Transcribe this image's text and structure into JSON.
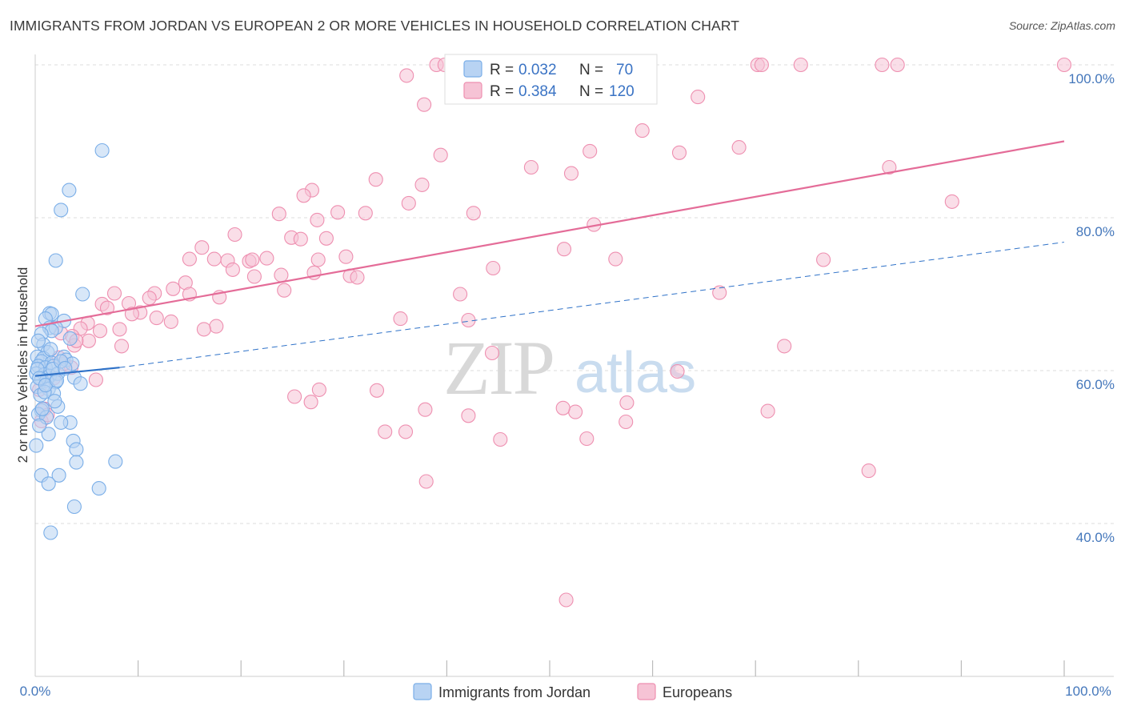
{
  "title": "IMMIGRANTS FROM JORDAN VS EUROPEAN 2 OR MORE VEHICLES IN HOUSEHOLD CORRELATION CHART",
  "source": "Source: ZipAtlas.com",
  "colors": {
    "blue": "#7aaee8",
    "blue_fill": "#b8d3f3",
    "blue_line": "#2f72c8",
    "pink": "#ee8fb0",
    "pink_fill": "#f6c3d5",
    "pink_line": "#e46c98",
    "grid": "#dddddd",
    "tick_text": "#4477bb"
  },
  "watermark": {
    "zip": "ZIP",
    "atlas": "atlas"
  },
  "stats": {
    "r_label": "R =",
    "n_label": "N =",
    "jordan": {
      "r": "0.032",
      "n": "70"
    },
    "europeans": {
      "r": "0.384",
      "n": "120"
    }
  },
  "chart_data": {
    "type": "scatter",
    "title": "IMMIGRANTS FROM JORDAN VS EUROPEAN 2 OR MORE VEHICLES IN HOUSEHOLD CORRELATION CHART",
    "xlabel": "",
    "ylabel": "2 or more Vehicles in Household",
    "xlim": [
      0,
      100
    ],
    "ylim": [
      20,
      102
    ],
    "x_tick_labels": [
      "0.0%",
      "100.0%"
    ],
    "y_ticks": [
      {
        "value": 40,
        "label": "40.0%"
      },
      {
        "value": 60,
        "label": "60.0%"
      },
      {
        "value": 80,
        "label": "80.0%"
      },
      {
        "value": 100,
        "label": "100.0%"
      }
    ],
    "legend": [
      "Immigrants from Jordan",
      "Europeans"
    ],
    "legend_position": "bottom-center",
    "series": [
      {
        "name": "Immigrants from Jordan",
        "trend": {
          "x0": 0,
          "y0": 59.3,
          "x1": 8.2,
          "y1": 60.4,
          "dash_x1": 100,
          "dash_y1": 76.8
        },
        "points": [
          [
            6.5,
            88.8
          ],
          [
            3.3,
            83.6
          ],
          [
            2.5,
            81.0
          ],
          [
            2.0,
            74.4
          ],
          [
            4.6,
            70.0
          ],
          [
            1.4,
            67.5
          ],
          [
            1.6,
            67.4
          ],
          [
            1.0,
            66.8
          ],
          [
            2.8,
            66.5
          ],
          [
            1.4,
            65.6
          ],
          [
            2.0,
            65.6
          ],
          [
            1.6,
            65.2
          ],
          [
            0.6,
            64.8
          ],
          [
            0.8,
            63.4
          ],
          [
            3.4,
            64.2
          ],
          [
            1.2,
            62.4
          ],
          [
            0.2,
            61.8
          ],
          [
            0.8,
            61.6
          ],
          [
            2.8,
            61.8
          ],
          [
            3.0,
            61.4
          ],
          [
            0.6,
            61.2
          ],
          [
            1.6,
            61.0
          ],
          [
            0.3,
            60.6
          ],
          [
            1.0,
            60.4
          ],
          [
            1.8,
            60.6
          ],
          [
            3.6,
            60.9
          ],
          [
            0.1,
            59.6
          ],
          [
            0.9,
            59.5
          ],
          [
            1.4,
            59.3
          ],
          [
            2.2,
            59.6
          ],
          [
            3.8,
            59.1
          ],
          [
            0.6,
            58.9
          ],
          [
            1.1,
            58.7
          ],
          [
            2.0,
            58.5
          ],
          [
            4.4,
            58.3
          ],
          [
            0.2,
            57.9
          ],
          [
            1.3,
            57.6
          ],
          [
            1.8,
            57.0
          ],
          [
            0.5,
            56.8
          ],
          [
            2.2,
            55.3
          ],
          [
            0.6,
            54.8
          ],
          [
            0.3,
            54.3
          ],
          [
            1.1,
            53.9
          ],
          [
            3.4,
            53.2
          ],
          [
            2.5,
            53.2
          ],
          [
            1.3,
            51.7
          ],
          [
            3.7,
            50.8
          ],
          [
            4.0,
            49.7
          ],
          [
            4.0,
            48.0
          ],
          [
            7.8,
            48.1
          ],
          [
            0.1,
            50.2
          ],
          [
            0.6,
            46.3
          ],
          [
            2.3,
            46.3
          ],
          [
            1.3,
            45.2
          ],
          [
            6.2,
            44.6
          ],
          [
            3.8,
            42.2
          ],
          [
            1.5,
            38.8
          ],
          [
            0.2,
            60.2
          ],
          [
            0.4,
            59.0
          ],
          [
            1.7,
            60.2
          ],
          [
            2.5,
            61.2
          ],
          [
            0.9,
            57.2
          ],
          [
            1.5,
            62.8
          ],
          [
            0.3,
            63.9
          ],
          [
            2.9,
            60.3
          ],
          [
            1.0,
            58.1
          ],
          [
            0.7,
            55.0
          ],
          [
            1.9,
            56.0
          ],
          [
            0.4,
            52.8
          ],
          [
            2.1,
            58.7
          ]
        ]
      },
      {
        "name": "Europeans",
        "trend": {
          "x0": 0,
          "y0": 65.8,
          "x1": 100,
          "y1": 90.0
        },
        "points": [
          [
            39.0,
            100
          ],
          [
            39.8,
            100
          ],
          [
            46.6,
            100
          ],
          [
            48.2,
            99.4
          ],
          [
            70.2,
            100
          ],
          [
            70.6,
            100
          ],
          [
            74.4,
            100
          ],
          [
            82.3,
            100
          ],
          [
            83.8,
            100
          ],
          [
            100.0,
            100
          ],
          [
            45.2,
            99.6
          ],
          [
            36.1,
            98.6
          ],
          [
            50.4,
            97.6
          ],
          [
            47.8,
            96.4
          ],
          [
            64.4,
            95.8
          ],
          [
            37.8,
            94.8
          ],
          [
            59.0,
            91.4
          ],
          [
            68.4,
            89.2
          ],
          [
            53.9,
            88.7
          ],
          [
            62.6,
            88.5
          ],
          [
            39.4,
            88.2
          ],
          [
            48.2,
            86.6
          ],
          [
            52.1,
            85.8
          ],
          [
            83.0,
            86.6
          ],
          [
            33.1,
            85.0
          ],
          [
            37.6,
            84.3
          ],
          [
            26.9,
            83.6
          ],
          [
            26.1,
            82.9
          ],
          [
            36.3,
            81.9
          ],
          [
            89.1,
            82.1
          ],
          [
            23.7,
            80.5
          ],
          [
            29.4,
            80.7
          ],
          [
            32.1,
            80.6
          ],
          [
            42.6,
            80.6
          ],
          [
            27.4,
            79.7
          ],
          [
            54.3,
            79.1
          ],
          [
            19.4,
            77.8
          ],
          [
            24.9,
            77.4
          ],
          [
            25.8,
            77.2
          ],
          [
            28.3,
            77.3
          ],
          [
            16.2,
            76.1
          ],
          [
            51.4,
            75.9
          ],
          [
            76.6,
            74.5
          ],
          [
            15.0,
            74.6
          ],
          [
            17.4,
            74.6
          ],
          [
            18.7,
            74.4
          ],
          [
            20.8,
            74.3
          ],
          [
            21.1,
            74.5
          ],
          [
            22.5,
            74.7
          ],
          [
            27.5,
            74.5
          ],
          [
            30.2,
            74.9
          ],
          [
            56.4,
            74.6
          ],
          [
            44.5,
            73.4
          ],
          [
            19.2,
            73.2
          ],
          [
            21.3,
            72.3
          ],
          [
            23.9,
            72.5
          ],
          [
            27.1,
            72.8
          ],
          [
            30.6,
            72.4
          ],
          [
            31.3,
            72.2
          ],
          [
            14.6,
            71.5
          ],
          [
            13.4,
            70.7
          ],
          [
            11.6,
            70.1
          ],
          [
            15.0,
            70.0
          ],
          [
            24.2,
            70.5
          ],
          [
            41.3,
            70.0
          ],
          [
            66.5,
            70.2
          ],
          [
            7.7,
            70.1
          ],
          [
            11.1,
            69.5
          ],
          [
            17.9,
            69.6
          ],
          [
            9.1,
            68.8
          ],
          [
            6.5,
            68.7
          ],
          [
            7.0,
            68.2
          ],
          [
            10.2,
            67.6
          ],
          [
            9.4,
            67.4
          ],
          [
            11.8,
            66.9
          ],
          [
            35.5,
            66.8
          ],
          [
            42.1,
            66.6
          ],
          [
            13.2,
            66.4
          ],
          [
            5.1,
            66.2
          ],
          [
            17.6,
            65.8
          ],
          [
            16.4,
            65.4
          ],
          [
            4.4,
            65.5
          ],
          [
            8.2,
            65.4
          ],
          [
            6.3,
            65.2
          ],
          [
            2.5,
            64.9
          ],
          [
            3.6,
            64.5
          ],
          [
            5.2,
            63.9
          ],
          [
            8.4,
            63.2
          ],
          [
            3.8,
            63.3
          ],
          [
            72.8,
            63.2
          ],
          [
            44.4,
            62.3
          ],
          [
            2.3,
            61.7
          ],
          [
            3.5,
            60.4
          ],
          [
            62.4,
            59.9
          ],
          [
            1.8,
            59.0
          ],
          [
            27.6,
            57.5
          ],
          [
            33.2,
            57.4
          ],
          [
            25.2,
            56.6
          ],
          [
            57.5,
            55.8
          ],
          [
            26.8,
            55.9
          ],
          [
            37.9,
            54.9
          ],
          [
            52.5,
            54.6
          ],
          [
            51.3,
            55.1
          ],
          [
            71.2,
            54.7
          ],
          [
            57.4,
            53.3
          ],
          [
            42.1,
            54.1
          ],
          [
            34.0,
            52.0
          ],
          [
            36.0,
            52.0
          ],
          [
            53.6,
            51.1
          ],
          [
            45.2,
            51.0
          ],
          [
            0.4,
            57.5
          ],
          [
            0.9,
            55.0
          ],
          [
            0.6,
            53.4
          ],
          [
            81.0,
            46.9
          ],
          [
            38.0,
            45.5
          ],
          [
            51.6,
            30.0
          ],
          [
            1.2,
            54.2
          ],
          [
            2.8,
            60.9
          ],
          [
            4.0,
            63.9
          ],
          [
            5.9,
            58.8
          ]
        ]
      }
    ]
  }
}
